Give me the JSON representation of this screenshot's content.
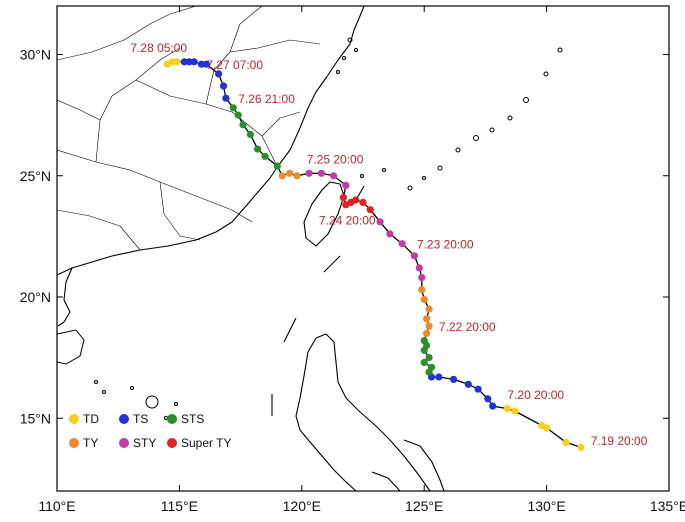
{
  "map": {
    "lon_range": [
      110,
      135
    ],
    "lat_range": [
      12,
      32
    ],
    "x_ticks": [
      {
        "value": 110,
        "label": "110°E"
      },
      {
        "value": 115,
        "label": "115°E"
      },
      {
        "value": 120,
        "label": "120°E"
      },
      {
        "value": 125,
        "label": "125°E"
      },
      {
        "value": 130,
        "label": "130°E"
      },
      {
        "value": 135,
        "label": "135°E"
      }
    ],
    "y_ticks": [
      {
        "value": 15,
        "label": "15°N"
      },
      {
        "value": 20,
        "label": "20°N"
      },
      {
        "value": 25,
        "label": "25°N"
      },
      {
        "value": 30,
        "label": "30°N"
      }
    ]
  },
  "intensity_colors": {
    "TD": "#f7cf1e",
    "TS": "#1f33d6",
    "STS": "#2a8f2a",
    "TY": "#f0882c",
    "STY": "#c43aa6",
    "SuperTY": "#e02222"
  },
  "legend": {
    "items": [
      {
        "key": "TD",
        "label": "TD"
      },
      {
        "key": "TS",
        "label": "TS"
      },
      {
        "key": "STS",
        "label": "STS"
      },
      {
        "key": "TY",
        "label": "TY"
      },
      {
        "key": "STY",
        "label": "STY"
      },
      {
        "key": "SuperTY",
        "label": "Super TY"
      }
    ]
  },
  "chart_data": {
    "type": "scatter",
    "xlabel": "",
    "ylabel": "",
    "xlim": [
      110,
      135
    ],
    "ylim": [
      12,
      32
    ],
    "track": [
      {
        "lon": 131.4,
        "lat": 13.8,
        "cat": "TD"
      },
      {
        "lon": 130.8,
        "lat": 14.0,
        "cat": "TD"
      },
      {
        "lon": 130.0,
        "lat": 14.6,
        "cat": "TD"
      },
      {
        "lon": 129.8,
        "lat": 14.7,
        "cat": "TD"
      },
      {
        "lon": 128.7,
        "lat": 15.3,
        "cat": "TD"
      },
      {
        "lon": 128.4,
        "lat": 15.4,
        "cat": "TD"
      },
      {
        "lon": 127.8,
        "lat": 15.5,
        "cat": "TS"
      },
      {
        "lon": 127.6,
        "lat": 15.8,
        "cat": "TS"
      },
      {
        "lon": 127.2,
        "lat": 16.2,
        "cat": "TS"
      },
      {
        "lon": 126.8,
        "lat": 16.4,
        "cat": "TS"
      },
      {
        "lon": 126.2,
        "lat": 16.6,
        "cat": "TS"
      },
      {
        "lon": 125.6,
        "lat": 16.7,
        "cat": "TS"
      },
      {
        "lon": 125.3,
        "lat": 16.7,
        "cat": "TS"
      },
      {
        "lon": 125.2,
        "lat": 16.9,
        "cat": "STS"
      },
      {
        "lon": 125.3,
        "lat": 17.1,
        "cat": "STS"
      },
      {
        "lon": 125.0,
        "lat": 17.3,
        "cat": "STS"
      },
      {
        "lon": 125.2,
        "lat": 17.5,
        "cat": "STS"
      },
      {
        "lon": 125.0,
        "lat": 17.8,
        "cat": "STS"
      },
      {
        "lon": 125.1,
        "lat": 18.0,
        "cat": "STS"
      },
      {
        "lon": 125.0,
        "lat": 18.2,
        "cat": "STS"
      },
      {
        "lon": 125.1,
        "lat": 18.5,
        "cat": "TY"
      },
      {
        "lon": 125.2,
        "lat": 18.8,
        "cat": "TY"
      },
      {
        "lon": 125.1,
        "lat": 19.1,
        "cat": "TY"
      },
      {
        "lon": 125.2,
        "lat": 19.5,
        "cat": "TY"
      },
      {
        "lon": 125.0,
        "lat": 19.9,
        "cat": "TY"
      },
      {
        "lon": 124.9,
        "lat": 20.3,
        "cat": "TY"
      },
      {
        "lon": 124.9,
        "lat": 20.8,
        "cat": "STY"
      },
      {
        "lon": 124.8,
        "lat": 21.2,
        "cat": "STY"
      },
      {
        "lon": 124.6,
        "lat": 21.7,
        "cat": "STY"
      },
      {
        "lon": 124.1,
        "lat": 22.2,
        "cat": "STY"
      },
      {
        "lon": 123.6,
        "lat": 22.6,
        "cat": "STY"
      },
      {
        "lon": 123.2,
        "lat": 23.1,
        "cat": "STY"
      },
      {
        "lon": 122.8,
        "lat": 23.6,
        "cat": "SuperTY"
      },
      {
        "lon": 122.5,
        "lat": 23.9,
        "cat": "SuperTY"
      },
      {
        "lon": 122.2,
        "lat": 24.0,
        "cat": "SuperTY"
      },
      {
        "lon": 122.0,
        "lat": 23.9,
        "cat": "SuperTY"
      },
      {
        "lon": 121.8,
        "lat": 23.8,
        "cat": "SuperTY"
      },
      {
        "lon": 121.7,
        "lat": 24.1,
        "cat": "SuperTY"
      },
      {
        "lon": 121.8,
        "lat": 24.6,
        "cat": "STY"
      },
      {
        "lon": 121.3,
        "lat": 25.0,
        "cat": "STY"
      },
      {
        "lon": 120.8,
        "lat": 25.1,
        "cat": "STY"
      },
      {
        "lon": 120.3,
        "lat": 25.1,
        "cat": "STY"
      },
      {
        "lon": 119.8,
        "lat": 25.0,
        "cat": "TY"
      },
      {
        "lon": 119.5,
        "lat": 25.1,
        "cat": "TY"
      },
      {
        "lon": 119.2,
        "lat": 25.0,
        "cat": "TY"
      },
      {
        "lon": 119.0,
        "lat": 25.4,
        "cat": "STS"
      },
      {
        "lon": 118.5,
        "lat": 25.8,
        "cat": "STS"
      },
      {
        "lon": 118.2,
        "lat": 26.1,
        "cat": "STS"
      },
      {
        "lon": 117.9,
        "lat": 26.7,
        "cat": "STS"
      },
      {
        "lon": 117.6,
        "lat": 27.1,
        "cat": "STS"
      },
      {
        "lon": 117.4,
        "lat": 27.5,
        "cat": "STS"
      },
      {
        "lon": 117.2,
        "lat": 27.8,
        "cat": "STS"
      },
      {
        "lon": 116.9,
        "lat": 28.2,
        "cat": "TS"
      },
      {
        "lon": 116.8,
        "lat": 28.7,
        "cat": "TS"
      },
      {
        "lon": 116.6,
        "lat": 29.2,
        "cat": "TS"
      },
      {
        "lon": 116.1,
        "lat": 29.6,
        "cat": "TS"
      },
      {
        "lon": 115.9,
        "lat": 29.6,
        "cat": "TS"
      },
      {
        "lon": 115.6,
        "lat": 29.7,
        "cat": "TS"
      },
      {
        "lon": 115.4,
        "lat": 29.7,
        "cat": "TS"
      },
      {
        "lon": 115.2,
        "lat": 29.7,
        "cat": "TS"
      },
      {
        "lon": 114.9,
        "lat": 29.7,
        "cat": "TD"
      },
      {
        "lon": 114.7,
        "lat": 29.7,
        "cat": "TD"
      },
      {
        "lon": 114.5,
        "lat": 29.6,
        "cat": "TD"
      }
    ],
    "annotations": [
      {
        "text": "7.19 20:00",
        "lon": 131.8,
        "lat": 13.9
      },
      {
        "text": "7.20 20:00",
        "lon": 128.4,
        "lat": 15.8
      },
      {
        "text": "7.22 20:00",
        "lon": 125.6,
        "lat": 18.6
      },
      {
        "text": "7.23 20:00",
        "lon": 124.7,
        "lat": 22.0
      },
      {
        "text": "7.24 20:00",
        "lon": 120.7,
        "lat": 23.0
      },
      {
        "text": "7.25 20:00",
        "lon": 120.2,
        "lat": 25.5
      },
      {
        "text": "7.26 21:00",
        "lon": 117.4,
        "lat": 28.0
      },
      {
        "text": "7.27 07:00",
        "lon": 116.1,
        "lat": 29.4
      },
      {
        "text": "7.28 05:00",
        "lon": 113.0,
        "lat": 30.1
      }
    ]
  }
}
